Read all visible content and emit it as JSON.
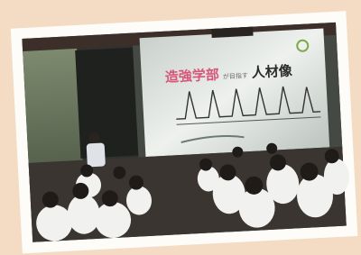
{
  "slide": {
    "title_colored": "造強学部",
    "title_small": "が目指す",
    "title_main": "人材像"
  }
}
